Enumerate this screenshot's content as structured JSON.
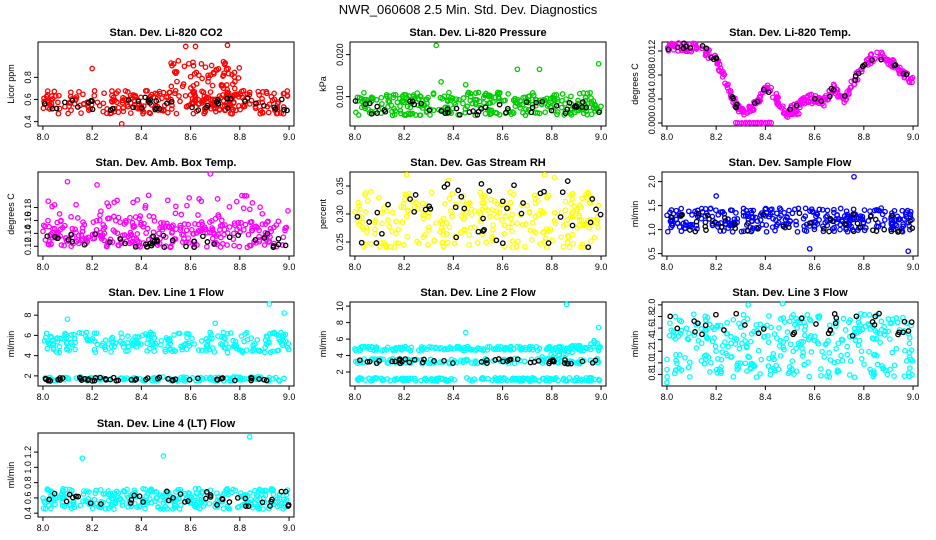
{
  "title": "NWR_060608  2.5 Min. Std. Dev. Diagnostics",
  "colors": {
    "highlight": "#000000"
  },
  "chart_data": [
    {
      "type": "scatter",
      "title": "Stan. Dev. Li-820 CO2",
      "xlabel": "",
      "ylabel": "Licor ppm",
      "color": "#ff0000",
      "xlim": [
        7.98,
        9.02
      ],
      "ylim": [
        0.36,
        1.12
      ],
      "x_ticks": [
        "8.0",
        "8.2",
        "8.4",
        "8.6",
        "8.8",
        "9.0"
      ],
      "y_ticks": [
        "0.4",
        "0.6",
        "0.8"
      ],
      "band": {
        "lo": 0.47,
        "hi": 0.68,
        "n": 260,
        "x_start": 8.0,
        "x_end": 9.0
      },
      "hump": {
        "x_start": 8.52,
        "x_end": 8.8,
        "lo": 0.55,
        "hi": 0.95,
        "n": 90
      },
      "outliers": [
        {
          "x": 8.58,
          "y": 1.08
        },
        {
          "x": 8.62,
          "y": 1.08
        },
        {
          "x": 8.75,
          "y": 1.09
        },
        {
          "x": 8.32,
          "y": 0.38
        },
        {
          "x": 8.55,
          "y": 0.95
        },
        {
          "x": 8.2,
          "y": 0.88
        }
      ],
      "black_lo": 0.5,
      "black_hi": 0.62,
      "black_n": 45
    },
    {
      "type": "scatter",
      "title": "Stan. Dev. Li-820 Pressure",
      "xlabel": "",
      "ylabel": "kPa",
      "color": "#00cc00",
      "xlim": [
        7.98,
        9.02
      ],
      "ylim": [
        0.003,
        0.023
      ],
      "x_ticks": [
        "8.0",
        "8.2",
        "8.4",
        "8.6",
        "8.8",
        "9.0"
      ],
      "y_ticks": [
        "0.010",
        "0.020"
      ],
      "band": {
        "lo": 0.0055,
        "hi": 0.011,
        "n": 300,
        "x_start": 8.0,
        "x_end": 9.0
      },
      "outliers": [
        {
          "x": 8.33,
          "y": 0.0222
        },
        {
          "x": 8.66,
          "y": 0.0165
        },
        {
          "x": 8.75,
          "y": 0.0165
        },
        {
          "x": 8.99,
          "y": 0.0178
        },
        {
          "x": 8.35,
          "y": 0.0135
        },
        {
          "x": 8.45,
          "y": 0.0128
        }
      ],
      "black_lo": 0.0055,
      "black_hi": 0.009,
      "black_n": 45
    },
    {
      "type": "scatter",
      "title": "Stan. Dev. Li-820 Temp.",
      "xlabel": "",
      "ylabel": "degrees C",
      "color": "#ff00ff",
      "xlim": [
        7.98,
        9.02
      ],
      "ylim": [
        -0.0005,
        0.0135
      ],
      "x_ticks": [
        "8.0",
        "8.2",
        "8.4",
        "8.6",
        "8.8",
        "9.0"
      ],
      "y_ticks": [
        "0.000",
        "0.004",
        "0.008",
        "0.012"
      ],
      "curve": [
        [
          8.0,
          0.0128
        ],
        [
          8.08,
          0.0127
        ],
        [
          8.15,
          0.0122
        ],
        [
          8.2,
          0.0105
        ],
        [
          8.25,
          0.006
        ],
        [
          8.28,
          0.003
        ],
        [
          8.32,
          0.0015
        ],
        [
          8.36,
          0.003
        ],
        [
          8.4,
          0.006
        ],
        [
          8.44,
          0.0045
        ],
        [
          8.48,
          0.0015
        ],
        [
          8.52,
          0.0025
        ],
        [
          8.58,
          0.004
        ],
        [
          8.64,
          0.0035
        ],
        [
          8.68,
          0.0058
        ],
        [
          8.72,
          0.004
        ],
        [
          8.76,
          0.007
        ],
        [
          8.8,
          0.0095
        ],
        [
          8.85,
          0.0115
        ],
        [
          8.9,
          0.0105
        ],
        [
          8.95,
          0.0085
        ],
        [
          9.0,
          0.007
        ]
      ],
      "curve_spread": 0.0016,
      "curve_n": 320,
      "extra_rows": [
        0.0,
        0.0015
      ],
      "extra_rows_x": [
        [
          8.28,
          8.43
        ],
        [
          8.48,
          8.54
        ]
      ],
      "black_lo": 0.0,
      "black_hi": 0.012,
      "black_n": 40
    },
    {
      "type": "scatter",
      "title": "Stan. Dev. Amb. Box Temp.",
      "xlabel": "",
      "ylabel": "degrees C",
      "color": "#ff00ff",
      "xlim": [
        7.98,
        9.02
      ],
      "ylim": [
        0.105,
        0.235
      ],
      "x_ticks": [
        "8.0",
        "8.2",
        "8.4",
        "8.6",
        "8.8",
        "9.0"
      ],
      "y_ticks": [
        "0.12",
        "0.14",
        "0.16",
        "0.18"
      ],
      "band": {
        "lo": 0.118,
        "hi": 0.16,
        "n": 260,
        "x_start": 8.0,
        "x_end": 9.0
      },
      "scatter_upper": {
        "lo": 0.15,
        "hi": 0.2,
        "n": 70
      },
      "outliers": [
        {
          "x": 8.68,
          "y": 0.232
        },
        {
          "x": 8.1,
          "y": 0.22
        },
        {
          "x": 8.22,
          "y": 0.215
        }
      ],
      "black_lo": 0.118,
      "black_hi": 0.14,
      "black_n": 40
    },
    {
      "type": "scatter",
      "title": "Stan. Dev. Gas Stream RH",
      "xlabel": "",
      "ylabel": "percent",
      "color": "#ffff00",
      "xlim": [
        7.98,
        9.02
      ],
      "ylim": [
        0.225,
        0.375
      ],
      "x_ticks": [
        "8.0",
        "8.2",
        "8.4",
        "8.6",
        "8.8",
        "9.0"
      ],
      "y_ticks": [
        "0.25",
        "0.30",
        "0.35"
      ],
      "band": {
        "lo": 0.24,
        "hi": 0.34,
        "n": 280,
        "x_start": 8.0,
        "x_end": 9.0
      },
      "outliers": [
        {
          "x": 8.21,
          "y": 0.37
        },
        {
          "x": 8.77,
          "y": 0.37
        },
        {
          "x": 8.81,
          "y": 0.365
        },
        {
          "x": 8.38,
          "y": 0.36
        }
      ],
      "black_lo": 0.24,
      "black_hi": 0.36,
      "black_n": 45
    },
    {
      "type": "scatter",
      "title": "Stan. Dev. Sample Flow",
      "xlabel": "",
      "ylabel": "ml/min",
      "color": "#0000ff",
      "xlim": [
        7.98,
        9.02
      ],
      "ylim": [
        0.45,
        2.2
      ],
      "x_ticks": [
        "8.0",
        "8.2",
        "8.4",
        "8.6",
        "8.8",
        "9.0"
      ],
      "y_ticks": [
        "0.5",
        "1.0",
        "1.5",
        "2.0"
      ],
      "band": {
        "lo": 0.95,
        "hi": 1.45,
        "n": 300,
        "x_start": 8.0,
        "x_end": 9.0
      },
      "outliers": [
        {
          "x": 8.76,
          "y": 2.1
        },
        {
          "x": 8.98,
          "y": 0.55
        },
        {
          "x": 8.58,
          "y": 0.6
        },
        {
          "x": 8.2,
          "y": 1.7
        }
      ],
      "black_lo": 0.95,
      "black_hi": 1.35,
      "black_n": 45
    },
    {
      "type": "scatter",
      "title": "Stan. Dev. Line 1 Flow",
      "xlabel": "",
      "ylabel": "ml/min",
      "color": "#00ffff",
      "xlim": [
        7.98,
        9.02
      ],
      "ylim": [
        1.0,
        9.3
      ],
      "x_ticks": [
        "8.0",
        "8.2",
        "8.4",
        "8.6",
        "8.8",
        "9.0"
      ],
      "y_ticks": [
        "2",
        "4",
        "6",
        "8"
      ],
      "rows": [
        {
          "lo": 4.3,
          "hi": 6.3,
          "n": 240
        },
        {
          "lo": 1.5,
          "hi": 1.9,
          "n": 120
        }
      ],
      "outliers": [
        {
          "x": 8.92,
          "y": 9.1
        },
        {
          "x": 8.98,
          "y": 8.2
        },
        {
          "x": 8.1,
          "y": 7.6
        },
        {
          "x": 8.7,
          "y": 7.2
        }
      ],
      "black_lo": 1.5,
      "black_hi": 1.85,
      "black_n": 50
    },
    {
      "type": "scatter",
      "title": "Stan. Dev. Line 2 Flow",
      "xlabel": "",
      "ylabel": "ml/min",
      "color": "#00ffff",
      "xlim": [
        7.98,
        9.02
      ],
      "ylim": [
        0.3,
        10.5
      ],
      "x_ticks": [
        "8.0",
        "8.2",
        "8.4",
        "8.6",
        "8.8",
        "9.0"
      ],
      "y_ticks": [
        "2",
        "4",
        "6",
        "8",
        "10"
      ],
      "rows": [
        {
          "lo": 4.6,
          "hi": 5.1,
          "n": 160
        },
        {
          "lo": 3.0,
          "hi": 3.6,
          "n": 120
        },
        {
          "lo": 0.9,
          "hi": 1.3,
          "n": 160
        }
      ],
      "rise": {
        "x_start": 8.75,
        "x_end": 9.0,
        "y_start": 3.4,
        "y_end": 6.0,
        "n": 25
      },
      "outliers": [
        {
          "x": 8.86,
          "y": 10.2
        },
        {
          "x": 8.45,
          "y": 6.8
        },
        {
          "x": 8.99,
          "y": 7.4
        }
      ],
      "black_lo": 3.0,
      "black_hi": 3.6,
      "black_n": 45
    },
    {
      "type": "scatter",
      "title": "Stan. Dev. Line 3 Flow",
      "xlabel": "",
      "ylabel": "ml/min",
      "color": "#00ffff",
      "xlim": [
        7.98,
        9.02
      ],
      "ylim": [
        0.6,
        2.05
      ],
      "x_ticks": [
        "8.0",
        "8.2",
        "8.4",
        "8.6",
        "8.8",
        "9.0"
      ],
      "y_ticks": [
        "0.8",
        "1.0",
        "1.2",
        "1.4",
        "1.6",
        "1.8",
        "2.0"
      ],
      "band": {
        "lo": 0.75,
        "hi": 1.85,
        "n": 340,
        "x_start": 8.0,
        "x_end": 9.0
      },
      "outliers": [
        {
          "x": 8.0,
          "y": 0.66
        },
        {
          "x": 8.33,
          "y": 2.0
        },
        {
          "x": 8.47,
          "y": 2.02
        }
      ],
      "black_lo": 1.45,
      "black_hi": 1.85,
      "black_n": 35
    },
    {
      "type": "scatter",
      "title": "Stan. Dev. Line 4 (LT) Flow",
      "xlabel": "",
      "ylabel": "ml/min",
      "color": "#00ffff",
      "xlim": [
        7.98,
        9.02
      ],
      "ylim": [
        0.35,
        1.45
      ],
      "x_ticks": [
        "8.0",
        "8.2",
        "8.4",
        "8.6",
        "8.8",
        "9.0"
      ],
      "y_ticks": [
        "0.4",
        "0.6",
        "0.8",
        "1.0",
        "1.2"
      ],
      "band": {
        "lo": 0.45,
        "hi": 0.72,
        "n": 300,
        "x_start": 8.0,
        "x_end": 9.0
      },
      "outliers": [
        {
          "x": 8.84,
          "y": 1.4
        },
        {
          "x": 8.16,
          "y": 1.12
        },
        {
          "x": 8.49,
          "y": 1.15
        }
      ],
      "black_lo": 0.48,
      "black_hi": 0.7,
      "black_n": 40
    }
  ]
}
